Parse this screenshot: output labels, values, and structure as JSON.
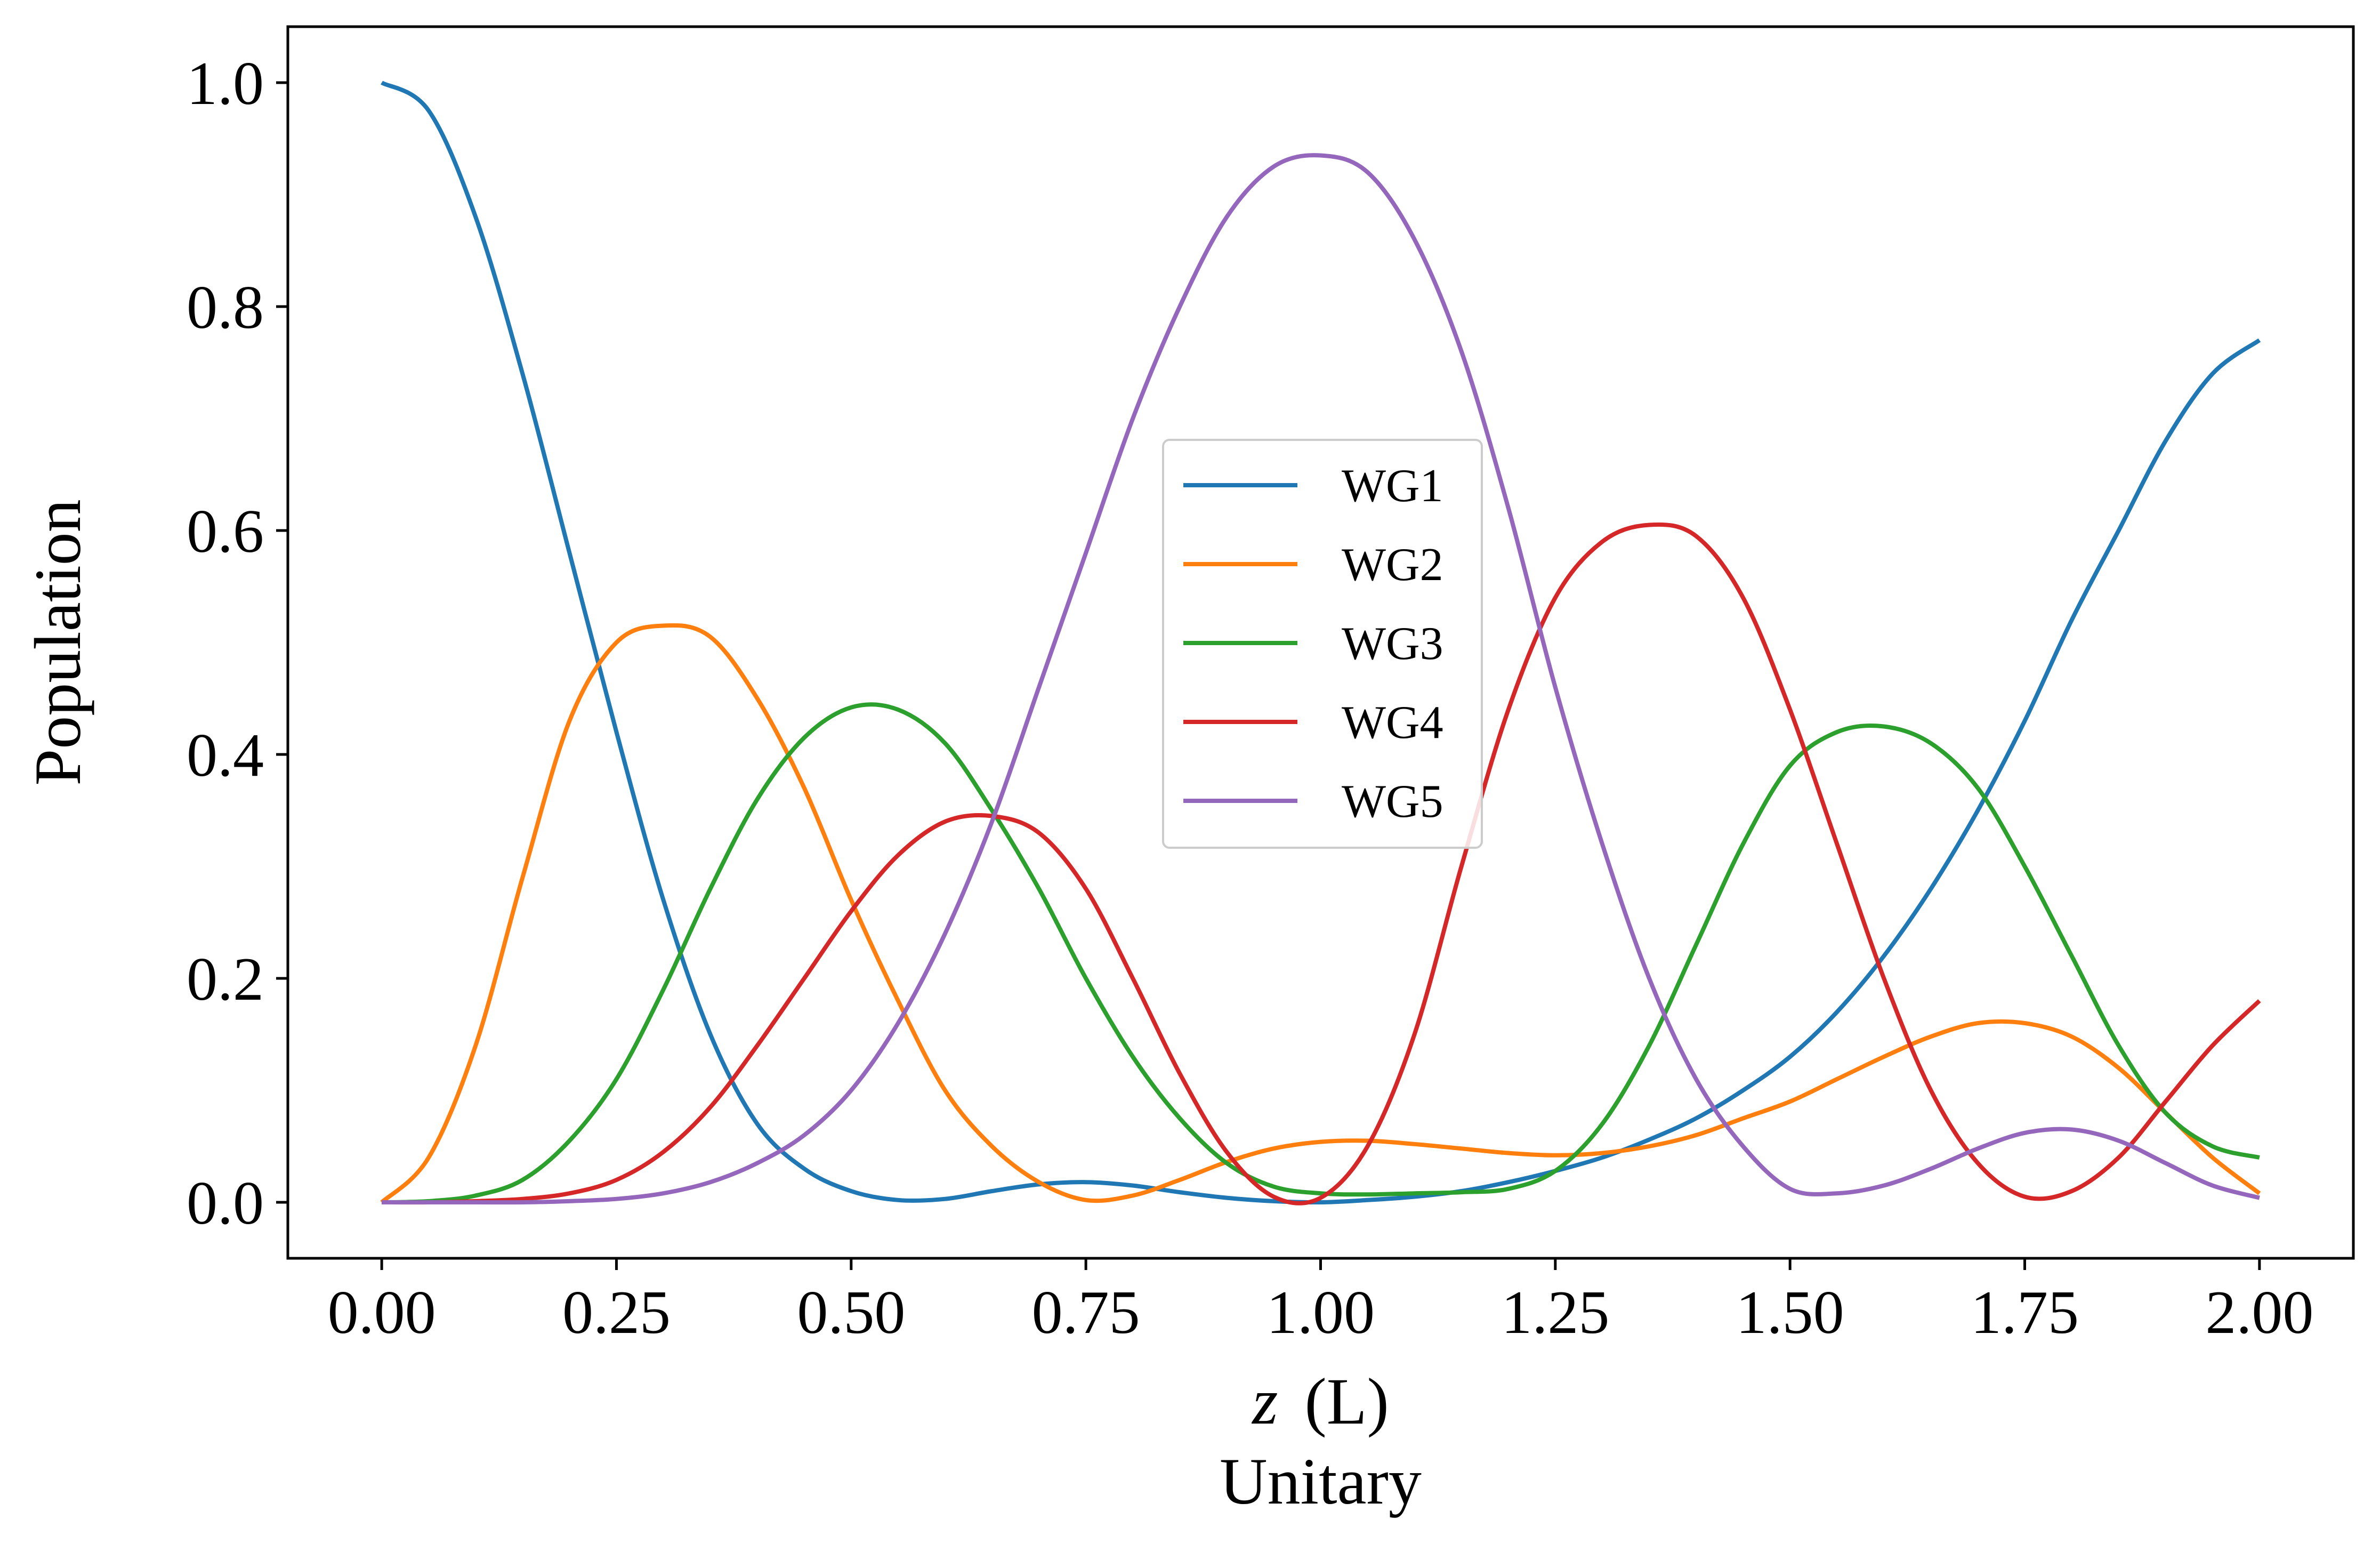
{
  "chart_data": {
    "type": "line",
    "title": "",
    "caption": "Unitary",
    "xlabel_var": "z",
    "xlabel_unit": "(L)",
    "ylabel": "Population",
    "xlim": [
      -0.1,
      2.1
    ],
    "ylim": [
      -0.05,
      1.05
    ],
    "xticks": [
      0.0,
      0.25,
      0.5,
      0.75,
      1.0,
      1.25,
      1.5,
      1.75,
      2.0
    ],
    "xtick_labels": [
      "0.00",
      "0.25",
      "0.50",
      "0.75",
      "1.00",
      "1.25",
      "1.50",
      "1.75",
      "2.00"
    ],
    "yticks": [
      0.0,
      0.2,
      0.4,
      0.6,
      0.8,
      1.0
    ],
    "ytick_labels": [
      "0.0",
      "0.2",
      "0.4",
      "0.6",
      "0.8",
      "1.0"
    ],
    "grid": false,
    "legend_position": "center",
    "x": [
      0.0,
      0.05,
      0.1,
      0.15,
      0.2,
      0.25,
      0.3,
      0.35,
      0.4,
      0.45,
      0.5,
      0.55,
      0.6,
      0.65,
      0.7,
      0.75,
      0.8,
      0.85,
      0.9,
      0.95,
      1.0,
      1.05,
      1.1,
      1.15,
      1.2,
      1.25,
      1.3,
      1.35,
      1.4,
      1.45,
      1.5,
      1.55,
      1.6,
      1.65,
      1.7,
      1.75,
      1.8,
      1.85,
      1.9,
      1.95,
      2.0
    ],
    "series": [
      {
        "name": "WG1",
        "color": "#1f77b4",
        "values": [
          1.0,
          0.975,
          0.88,
          0.74,
          0.58,
          0.42,
          0.27,
          0.15,
          0.07,
          0.03,
          0.01,
          0.002,
          0.003,
          0.01,
          0.016,
          0.018,
          0.015,
          0.009,
          0.004,
          0.001,
          0.0,
          0.002,
          0.005,
          0.01,
          0.018,
          0.028,
          0.04,
          0.056,
          0.075,
          0.1,
          0.13,
          0.17,
          0.22,
          0.28,
          0.35,
          0.43,
          0.52,
          0.6,
          0.68,
          0.74,
          0.77
        ]
      },
      {
        "name": "WG2",
        "color": "#ff7f0e",
        "values": [
          0.0,
          0.04,
          0.14,
          0.29,
          0.43,
          0.5,
          0.515,
          0.505,
          0.45,
          0.37,
          0.27,
          0.18,
          0.1,
          0.05,
          0.018,
          0.002,
          0.006,
          0.02,
          0.036,
          0.048,
          0.054,
          0.055,
          0.052,
          0.048,
          0.044,
          0.042,
          0.044,
          0.05,
          0.06,
          0.075,
          0.09,
          0.11,
          0.13,
          0.148,
          0.16,
          0.16,
          0.148,
          0.12,
          0.08,
          0.04,
          0.008
        ]
      },
      {
        "name": "WG3",
        "color": "#2ca02c",
        "values": [
          0.0,
          0.001,
          0.006,
          0.02,
          0.055,
          0.11,
          0.19,
          0.28,
          0.36,
          0.415,
          0.442,
          0.44,
          0.41,
          0.35,
          0.28,
          0.2,
          0.13,
          0.075,
          0.035,
          0.014,
          0.008,
          0.007,
          0.008,
          0.009,
          0.012,
          0.028,
          0.07,
          0.14,
          0.23,
          0.32,
          0.39,
          0.42,
          0.425,
          0.41,
          0.37,
          0.3,
          0.22,
          0.14,
          0.08,
          0.05,
          0.04
        ]
      },
      {
        "name": "WG4",
        "color": "#d62728",
        "values": [
          0.0,
          0.0,
          0.001,
          0.003,
          0.008,
          0.02,
          0.045,
          0.085,
          0.14,
          0.2,
          0.26,
          0.31,
          0.34,
          0.345,
          0.33,
          0.28,
          0.2,
          0.115,
          0.045,
          0.005,
          0.004,
          0.05,
          0.15,
          0.3,
          0.44,
          0.54,
          0.59,
          0.605,
          0.595,
          0.54,
          0.44,
          0.32,
          0.2,
          0.1,
          0.035,
          0.005,
          0.01,
          0.04,
          0.09,
          0.14,
          0.18
        ]
      },
      {
        "name": "WG5",
        "color": "#9467bd",
        "values": [
          0.0,
          0.0,
          0.0,
          0.0,
          0.001,
          0.003,
          0.008,
          0.018,
          0.035,
          0.06,
          0.1,
          0.16,
          0.24,
          0.34,
          0.46,
          0.58,
          0.7,
          0.8,
          0.88,
          0.925,
          0.935,
          0.92,
          0.86,
          0.76,
          0.62,
          0.46,
          0.32,
          0.2,
          0.11,
          0.05,
          0.012,
          0.008,
          0.015,
          0.03,
          0.048,
          0.062,
          0.065,
          0.055,
          0.035,
          0.015,
          0.004
        ]
      }
    ]
  }
}
